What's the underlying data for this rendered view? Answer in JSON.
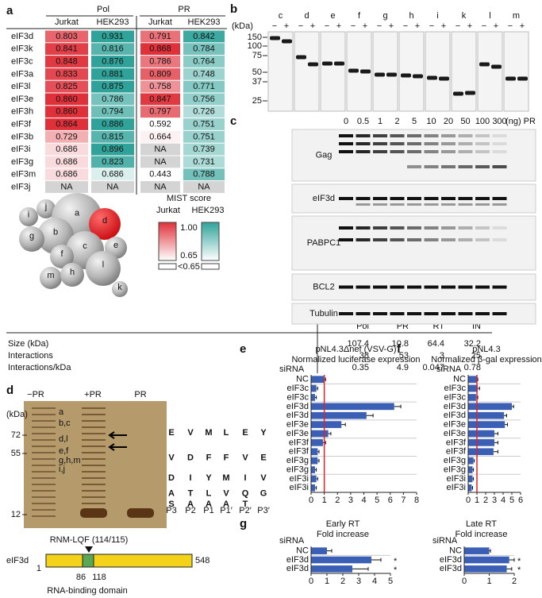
{
  "panel_a": {
    "label": "a",
    "groups": [
      "Pol",
      "PR"
    ],
    "subheaders": [
      "Jurkat",
      "HEK293",
      "Jurkat",
      "HEK293"
    ],
    "rows": [
      {
        "name": "eIF3d",
        "cells": [
          "0.803",
          "0.931",
          "0.791",
          "0.842"
        ]
      },
      {
        "name": "eIF3k",
        "cells": [
          "0.841",
          "0.816",
          "0.868",
          "0.784"
        ]
      },
      {
        "name": "eIF3c",
        "cells": [
          "0.848",
          "0.876",
          "0.786",
          "0.764"
        ]
      },
      {
        "name": "eIF3a",
        "cells": [
          "0.833",
          "0.881",
          "0.809",
          "0.748"
        ]
      },
      {
        "name": "eIF3l",
        "cells": [
          "0.825",
          "0.875",
          "0.758",
          "0.771"
        ]
      },
      {
        "name": "eIF3e",
        "cells": [
          "0.860",
          "0.786",
          "0.847",
          "0.756"
        ]
      },
      {
        "name": "eIF3h",
        "cells": [
          "0.860",
          "0.794",
          "0.797",
          "0.726"
        ]
      },
      {
        "name": "eIF3f",
        "cells": [
          "0.864",
          "0.886",
          "0.592",
          "0.751"
        ]
      },
      {
        "name": "eIF3b",
        "cells": [
          "0.729",
          "0.815",
          "0.664",
          "0.751"
        ]
      },
      {
        "name": "eIF3i",
        "cells": [
          "0.686",
          "0.896",
          "NA",
          "0.739"
        ]
      },
      {
        "name": "eIF3g",
        "cells": [
          "0.686",
          "0.823",
          "NA",
          "0.731"
        ]
      },
      {
        "name": "eIF3m",
        "cells": [
          "0.686",
          "0.686",
          "0.443",
          "0.788"
        ]
      },
      {
        "name": "eIF3j",
        "cells": [
          "NA",
          "NA",
          "NA",
          "NA"
        ]
      }
    ],
    "legend": {
      "title": "MIST score",
      "columns": [
        "Jurkat",
        "HEK293"
      ],
      "max": "1.00",
      "min": "0.65",
      "below": "<0.65",
      "colors": [
        "#e0303a",
        "#2fa39a"
      ],
      "na_color": "#d4d4d4"
    },
    "nodes": [
      "a",
      "b",
      "c",
      "d",
      "e",
      "f",
      "g",
      "h",
      "i",
      "j",
      "k",
      "l",
      "m"
    ],
    "highlight_color": "#e8141c"
  },
  "size_table": {
    "headers": [
      "Pol",
      "PR",
      "RT",
      "IN"
    ],
    "rows": [
      {
        "name": "Size (kDa)",
        "cells": [
          "107.4",
          "10.8",
          "64.4",
          "32.2"
        ]
      },
      {
        "name": "Interactions",
        "cells": [
          "38",
          "53",
          "3",
          "25"
        ]
      },
      {
        "name": "Interactions/kDa",
        "cells": [
          "0.35",
          "4.9",
          "0.047",
          "0.78"
        ]
      }
    ]
  },
  "panel_b": {
    "label": "b",
    "unit": "(kDa)",
    "markers": [
      "150",
      "100",
      "75",
      "50",
      "37",
      "25"
    ],
    "lanes": [
      "c",
      "d",
      "e",
      "f",
      "g",
      "h",
      "i",
      "k",
      "l",
      "m"
    ],
    "signs": [
      "−",
      "+"
    ]
  },
  "panel_c": {
    "label": "c",
    "doses": [
      "0",
      "0.5",
      "1",
      "2",
      "5",
      "10",
      "20",
      "50",
      "100",
      "300"
    ],
    "unit": "(ng) PR",
    "rows": [
      "Gag",
      "eIF3d",
      "PABPC1",
      "BCL2",
      "Tubulin"
    ]
  },
  "panel_d": {
    "label": "d",
    "lanes": [
      "−PR",
      "+PR",
      "PR"
    ],
    "unit": "(kDa)",
    "markers": [
      "72",
      "55",
      "12"
    ],
    "bands": [
      "a",
      "b,c",
      "d,l",
      "e,f",
      "g,h,m",
      "i,j"
    ],
    "logo": {
      "positions": [
        "P3",
        "P2",
        "P1",
        "P1′",
        "P2′",
        "P3′"
      ],
      "columns": [
        [
          "E",
          "V",
          "D",
          "A",
          "S"
        ],
        [
          "V",
          "D",
          "I",
          "T",
          "A"
        ],
        [
          "M",
          "F",
          "Y",
          "L",
          "A"
        ],
        [
          "L",
          "F",
          "M",
          "V",
          "A"
        ],
        [
          "E",
          "V",
          "I",
          "Q",
          "T"
        ],
        [
          "Y",
          "E",
          "V",
          "G"
        ]
      ],
      "letter_color": "#111"
    },
    "domain": {
      "protein": "eIF3d",
      "site": "RNM-LQF (114/115)",
      "start": "1",
      "dom_start": "86",
      "dom_end": "118",
      "end": "548",
      "domain_name": "RNA-binding domain"
    }
  },
  "chart_data": [
    {
      "type": "barh",
      "panel": "e",
      "title": "pNL4.3Δnef (VSV-G)",
      "subtitle": "Normalized luciferase expression",
      "axis_label": "siRNA",
      "color": "#3a5fb5",
      "ref_color": "#e0202a",
      "refline": 1,
      "categories": [
        "NC",
        "eIF3c",
        "eIF3c",
        "eIF3d",
        "eIF3d",
        "eIF3e",
        "eIF3e",
        "eIF3f",
        "eIF3f",
        "eIF3g",
        "eIF3g",
        "eIF3i",
        "eIF3i"
      ],
      "values": [
        1.0,
        0.4,
        0.3,
        6.3,
        4.2,
        2.3,
        1.3,
        0.9,
        0.5,
        0.5,
        0.3,
        0.4,
        0.3
      ],
      "errors": [
        0.1,
        0.1,
        0.1,
        0.5,
        0.5,
        0.3,
        0.2,
        0.2,
        0.1,
        0.1,
        0.1,
        0.1,
        0.1
      ],
      "xlim": [
        0,
        8
      ],
      "xticks": [
        0,
        1,
        2,
        3,
        4,
        5,
        6,
        7,
        8
      ]
    },
    {
      "type": "barh",
      "panel": "f",
      "title": "pNL4.3",
      "subtitle": "Normalized β-gal expression",
      "axis_label": "siRNA",
      "color": "#3a5fb5",
      "ref_color": "#e0202a",
      "refline": 1,
      "categories": [
        "NC",
        "eIF3c",
        "eIF3c",
        "eIF3d",
        "eIF3d",
        "eIF3e",
        "eIF3e",
        "eIF3f",
        "eIF3f",
        "eIF3g",
        "eIF3g",
        "eIF3i",
        "eIF3i"
      ],
      "values": [
        1.0,
        1.1,
        0.9,
        5.0,
        4.1,
        4.2,
        3.0,
        3.0,
        2.9,
        0.6,
        0.5,
        0.5,
        0.4
      ],
      "errors": [
        0.1,
        0.2,
        0.2,
        0.2,
        0.3,
        0.3,
        0.4,
        0.4,
        0.5,
        0.1,
        0.1,
        0.1,
        0.1
      ],
      "xlim": [
        0,
        6
      ],
      "xticks": [
        0,
        1,
        2,
        3,
        4,
        5,
        6
      ]
    },
    {
      "type": "barh",
      "panel": "g",
      "title": "Early RT",
      "subtitle": "Fold increase",
      "axis_label": "siRNA",
      "color": "#3a5fb5",
      "categories": [
        "NC",
        "eIF3d",
        "eIF3d"
      ],
      "values": [
        1.0,
        3.8,
        2.6
      ],
      "errors": [
        0.3,
        0.6,
        1.0
      ],
      "annotations": [
        null,
        "*",
        "*"
      ],
      "xlim": [
        0,
        5
      ],
      "xticks": [
        0,
        1,
        2,
        3,
        4,
        5
      ]
    },
    {
      "type": "barh",
      "title": "Late RT",
      "subtitle": "Fold increase",
      "axis_label": "siRNA",
      "color": "#3a5fb5",
      "categories": [
        "NC",
        "eIF3d",
        "eIF3d"
      ],
      "values": [
        1.0,
        1.8,
        1.7
      ],
      "errors": [
        0.05,
        0.2,
        0.2
      ],
      "annotations": [
        null,
        "*",
        "*"
      ],
      "xlim": [
        0,
        2
      ],
      "xticks": [
        0,
        1,
        2
      ]
    }
  ]
}
